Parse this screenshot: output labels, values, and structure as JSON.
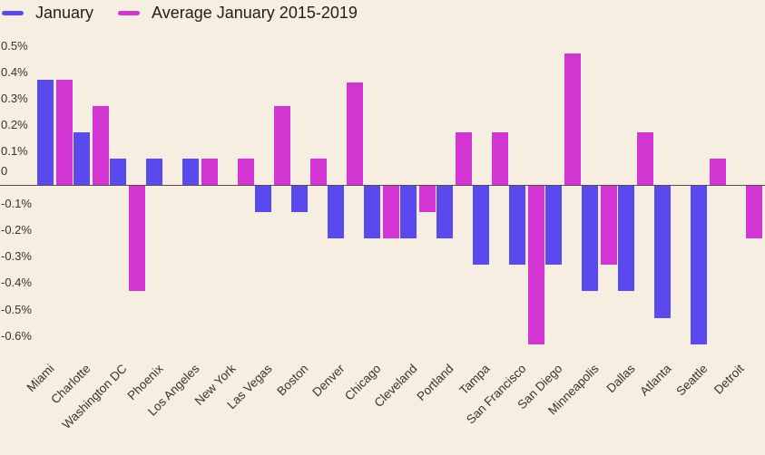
{
  "legend": {
    "items": [
      {
        "label": "January",
        "color": "#5b49f0"
      },
      {
        "label": "Average January 2015-2019",
        "color": "#d434d1"
      }
    ]
  },
  "chart_data": {
    "type": "bar",
    "title": "",
    "categories": [
      "Miami",
      "Charlotte",
      "Washington DC",
      "Phoenix",
      "Los Angeles",
      "New York",
      "Las Vegas",
      "Boston",
      "Denver",
      "Chicago",
      "Cleveland",
      "Portland",
      "Tampa",
      "San Francisco",
      "San Diego",
      "Minneapolis",
      "Dallas",
      "Atlanta",
      "Seattle",
      "Detroit"
    ],
    "series": [
      {
        "name": "January",
        "color": "#5b49f0",
        "values": [
          0.4,
          0.2,
          0.1,
          0.1,
          0.1,
          0,
          -0.1,
          -0.1,
          -0.2,
          -0.2,
          -0.2,
          -0.2,
          -0.3,
          -0.3,
          -0.3,
          -0.4,
          -0.4,
          -0.5,
          -0.6,
          0
        ]
      },
      {
        "name": "Average January 2015-2019",
        "color": "#d434d1",
        "values": [
          0.4,
          0.3,
          -0.4,
          0,
          0.1,
          0.1,
          0.3,
          0.1,
          0.39,
          -0.2,
          -0.1,
          0.2,
          0.2,
          -0.6,
          0.5,
          -0.3,
          0.2,
          0,
          0.1,
          -0.2
        ]
      }
    ],
    "y_axis": {
      "tick_labels": [
        "0.5%",
        "0.4%",
        "0.3%",
        "0.2%",
        "0.1%",
        "0",
        "-0.1%",
        "-0.2%",
        "-0.3%",
        "-0.4%",
        "-0.5%",
        "-0.6%"
      ],
      "tick_values": [
        0.5,
        0.4,
        0.3,
        0.2,
        0.1,
        0,
        -0.1,
        -0.2,
        -0.3,
        -0.4,
        -0.5,
        -0.6
      ]
    },
    "xlabel": "",
    "ylabel": "",
    "unit": "percent",
    "ylim": [
      -0.65,
      0.55
    ],
    "grid": false,
    "zero_baseline": true,
    "legend_position": "top-left"
  },
  "colors": {
    "background": "#f7eee2",
    "legend_text": "#231e1c",
    "tick_text": "#38322c",
    "axis_line": "#554d44",
    "bar_january": "#5b49f0",
    "bar_average": "#d434d1"
  }
}
